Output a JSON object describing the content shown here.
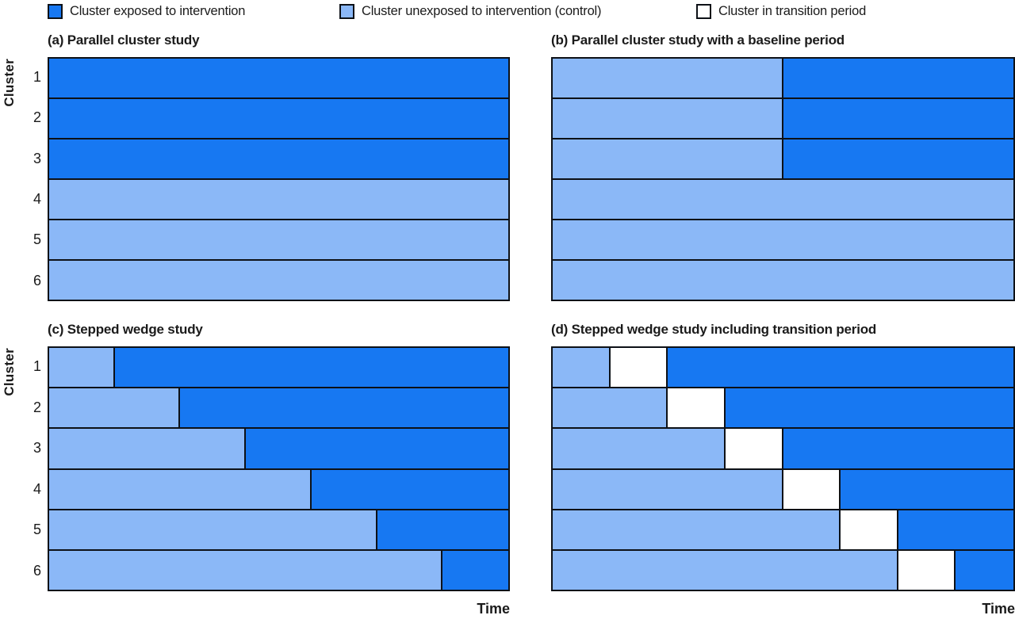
{
  "colors": {
    "exposed": "#1778F2",
    "unexposed": "#8BB8F7",
    "transition": "#FFFFFF",
    "border": "#0d1117"
  },
  "legend": {
    "items": [
      {
        "state": "exposed",
        "label": "Cluster exposed to intervention"
      },
      {
        "state": "unexposed",
        "label": "Cluster unexposed to intervention (control)"
      },
      {
        "state": "transition",
        "label": "Cluster in transition period"
      }
    ]
  },
  "ylabel": "Cluster",
  "xlabel": "Time",
  "cluster_labels": [
    "1",
    "2",
    "3",
    "4",
    "5",
    "6"
  ],
  "panels": [
    {
      "id": "a",
      "title": "(a) Parallel cluster study",
      "rows": [
        [
          {
            "state": "exposed",
            "pct": 100
          }
        ],
        [
          {
            "state": "exposed",
            "pct": 100
          }
        ],
        [
          {
            "state": "exposed",
            "pct": 100
          }
        ],
        [
          {
            "state": "unexposed",
            "pct": 100
          }
        ],
        [
          {
            "state": "unexposed",
            "pct": 100
          }
        ],
        [
          {
            "state": "unexposed",
            "pct": 100
          }
        ]
      ]
    },
    {
      "id": "b",
      "title": "(b) Parallel cluster study with a baseline period",
      "rows": [
        [
          {
            "state": "unexposed",
            "pct": 50
          },
          {
            "state": "exposed",
            "pct": 50
          }
        ],
        [
          {
            "state": "unexposed",
            "pct": 50
          },
          {
            "state": "exposed",
            "pct": 50
          }
        ],
        [
          {
            "state": "unexposed",
            "pct": 50
          },
          {
            "state": "exposed",
            "pct": 50
          }
        ],
        [
          {
            "state": "unexposed",
            "pct": 100
          }
        ],
        [
          {
            "state": "unexposed",
            "pct": 100
          }
        ],
        [
          {
            "state": "unexposed",
            "pct": 100
          }
        ]
      ]
    },
    {
      "id": "c",
      "title": "(c) Stepped wedge study",
      "rows": [
        [
          {
            "state": "unexposed",
            "pct": 14.29
          },
          {
            "state": "exposed",
            "pct": 85.71
          }
        ],
        [
          {
            "state": "unexposed",
            "pct": 28.57
          },
          {
            "state": "exposed",
            "pct": 71.43
          }
        ],
        [
          {
            "state": "unexposed",
            "pct": 42.86
          },
          {
            "state": "exposed",
            "pct": 57.14
          }
        ],
        [
          {
            "state": "unexposed",
            "pct": 57.14
          },
          {
            "state": "exposed",
            "pct": 42.86
          }
        ],
        [
          {
            "state": "unexposed",
            "pct": 71.43
          },
          {
            "state": "exposed",
            "pct": 28.57
          }
        ],
        [
          {
            "state": "unexposed",
            "pct": 85.71
          },
          {
            "state": "exposed",
            "pct": 14.29
          }
        ]
      ]
    },
    {
      "id": "d",
      "title": "(d) Stepped wedge study including transition period",
      "rows": [
        [
          {
            "state": "unexposed",
            "pct": 12.5
          },
          {
            "state": "transition",
            "pct": 12.5
          },
          {
            "state": "exposed",
            "pct": 75
          }
        ],
        [
          {
            "state": "unexposed",
            "pct": 25
          },
          {
            "state": "transition",
            "pct": 12.5
          },
          {
            "state": "exposed",
            "pct": 62.5
          }
        ],
        [
          {
            "state": "unexposed",
            "pct": 37.5
          },
          {
            "state": "transition",
            "pct": 12.5
          },
          {
            "state": "exposed",
            "pct": 50
          }
        ],
        [
          {
            "state": "unexposed",
            "pct": 50
          },
          {
            "state": "transition",
            "pct": 12.5
          },
          {
            "state": "exposed",
            "pct": 37.5
          }
        ],
        [
          {
            "state": "unexposed",
            "pct": 62.5
          },
          {
            "state": "transition",
            "pct": 12.5
          },
          {
            "state": "exposed",
            "pct": 25
          }
        ],
        [
          {
            "state": "unexposed",
            "pct": 75
          },
          {
            "state": "transition",
            "pct": 12.5
          },
          {
            "state": "exposed",
            "pct": 12.5
          }
        ]
      ]
    }
  ]
}
